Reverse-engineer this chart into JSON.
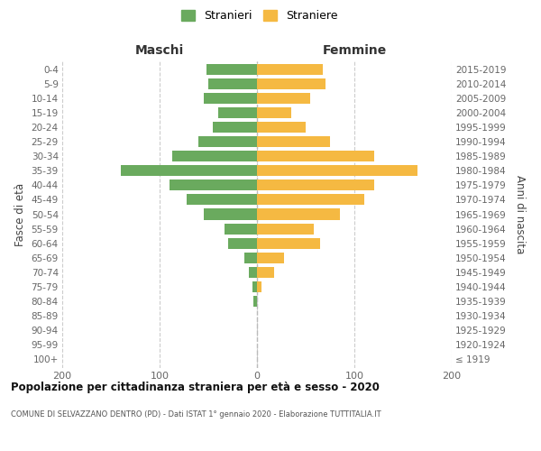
{
  "age_groups": [
    "100+",
    "95-99",
    "90-94",
    "85-89",
    "80-84",
    "75-79",
    "70-74",
    "65-69",
    "60-64",
    "55-59",
    "50-54",
    "45-49",
    "40-44",
    "35-39",
    "30-34",
    "25-29",
    "20-24",
    "15-19",
    "10-14",
    "5-9",
    "0-4"
  ],
  "birth_years": [
    "≤ 1919",
    "1920-1924",
    "1925-1929",
    "1930-1934",
    "1935-1939",
    "1940-1944",
    "1945-1949",
    "1950-1954",
    "1955-1959",
    "1960-1964",
    "1965-1969",
    "1970-1974",
    "1975-1979",
    "1980-1984",
    "1985-1989",
    "1990-1994",
    "1995-1999",
    "2000-2004",
    "2005-2009",
    "2010-2014",
    "2015-2019"
  ],
  "maschi": [
    0,
    0,
    0,
    0,
    4,
    5,
    8,
    13,
    30,
    33,
    55,
    72,
    90,
    140,
    87,
    60,
    45,
    40,
    55,
    50,
    52
  ],
  "femmine": [
    0,
    0,
    0,
    0,
    0,
    5,
    18,
    28,
    65,
    58,
    85,
    110,
    120,
    165,
    120,
    75,
    50,
    35,
    55,
    70,
    68
  ],
  "maschi_color": "#6aaa5e",
  "femmine_color": "#f5b942",
  "background_color": "#ffffff",
  "grid_color": "#cccccc",
  "title": "Popolazione per cittadinanza straniera per età e sesso - 2020",
  "subtitle": "COMUNE DI SELVAZZANO DENTRO (PD) - Dati ISTAT 1° gennaio 2020 - Elaborazione TUTTITALIA.IT",
  "ylabel_left": "Fasce di età",
  "ylabel_right": "Anni di nascita",
  "header_left": "Maschi",
  "header_right": "Femmine",
  "legend_maschi": "Stranieri",
  "legend_femmine": "Straniere",
  "xlim": 200
}
